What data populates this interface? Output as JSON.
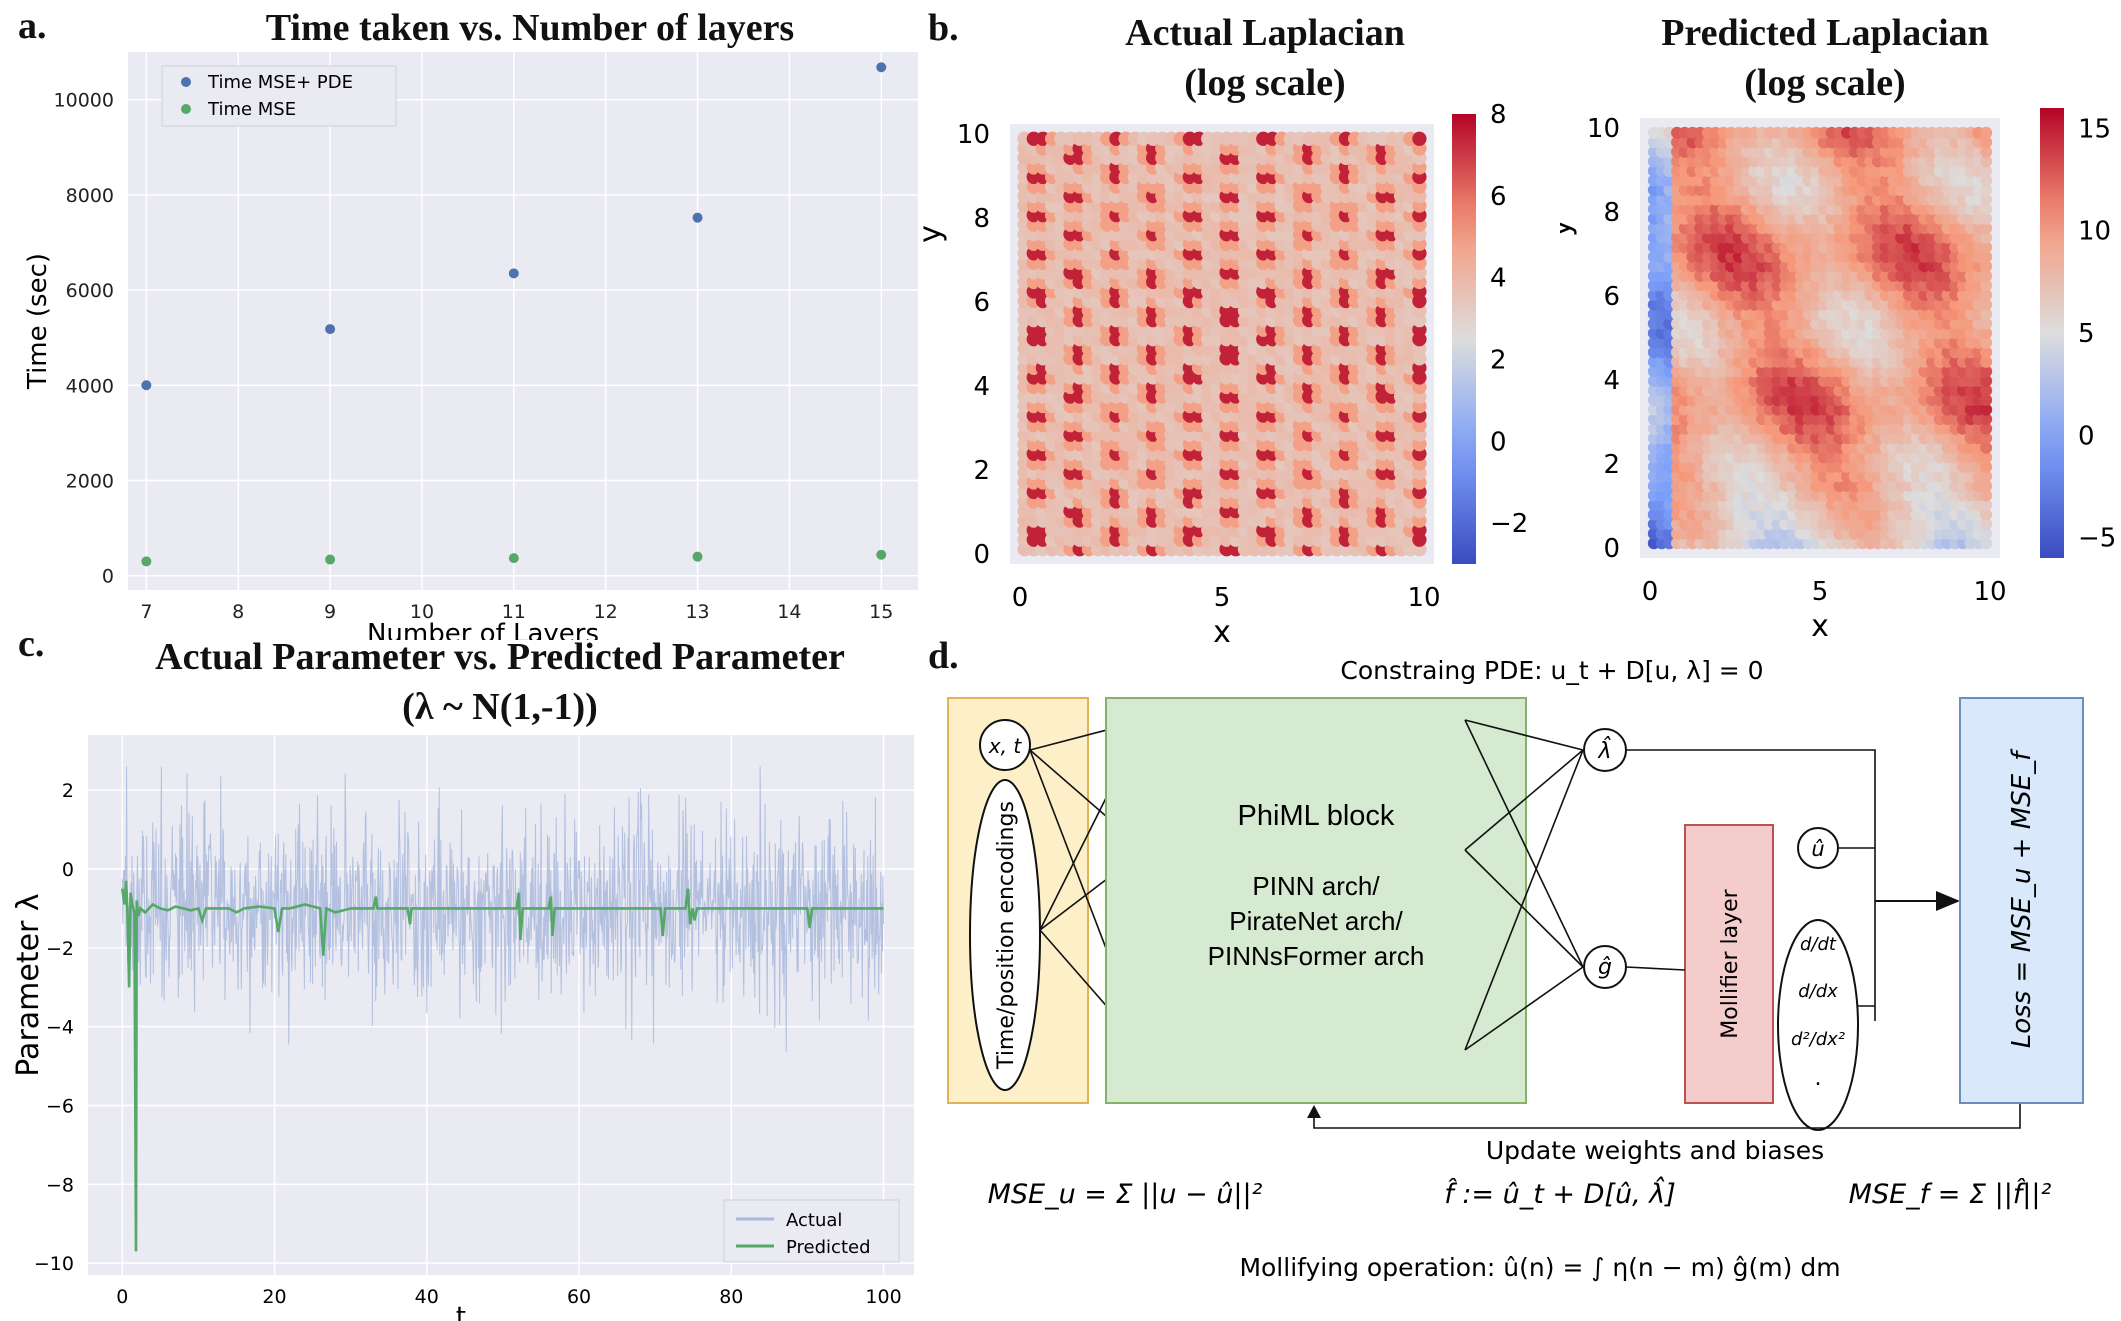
{
  "panel_labels": {
    "a": "a.",
    "b": "b.",
    "c": "c.",
    "d": "d."
  },
  "chart_data": [
    {
      "id": "a",
      "type": "scatter",
      "title": "Time taken vs. Number of layers",
      "xlabel": "Number of Layers",
      "ylabel": "Time (sec)",
      "xlim": [
        6.8,
        15.4
      ],
      "ylim": [
        -300,
        11000
      ],
      "xticks": [
        7,
        8,
        9,
        10,
        11,
        12,
        13,
        14,
        15
      ],
      "yticks": [
        0,
        2000,
        4000,
        6000,
        8000,
        10000
      ],
      "legend": "top-left",
      "series": [
        {
          "name": "Time MSE+ PDE",
          "color": "#4c72b0",
          "x": [
            7,
            9,
            11,
            13,
            15
          ],
          "y": [
            4000,
            5180,
            6350,
            7520,
            10680
          ]
        },
        {
          "name": "Time MSE",
          "color": "#55a868",
          "x": [
            7,
            9,
            11,
            13,
            15
          ],
          "y": [
            300,
            340,
            370,
            400,
            440
          ]
        }
      ]
    },
    {
      "id": "b1",
      "type": "heatmap",
      "title": "Actual Laplacian",
      "subtitle": "(log scale)",
      "xlabel": "x",
      "ylabel": "y",
      "xlim": [
        0,
        10
      ],
      "ylim": [
        0,
        10
      ],
      "xticks": [
        0,
        5,
        10
      ],
      "yticks": [
        0,
        2,
        4,
        6,
        8,
        10
      ],
      "colorbar_range": [
        -3,
        8
      ],
      "colorbar_ticks": [
        "8",
        "6",
        "4",
        "2",
        "0",
        "−2"
      ],
      "colormap": "coolwarm"
    },
    {
      "id": "b2",
      "type": "heatmap",
      "title": "Predicted Laplacian",
      "subtitle": "(log scale)",
      "xlabel": "x",
      "ylabel": "y",
      "xlim": [
        0,
        10
      ],
      "ylim": [
        0,
        10
      ],
      "xticks": [
        0,
        5,
        10
      ],
      "yticks": [
        0,
        2,
        4,
        6,
        8,
        10
      ],
      "colorbar_range": [
        -6,
        16
      ],
      "colorbar_ticks": [
        "15",
        "10",
        "5",
        "0",
        "−5"
      ],
      "colormap": "coolwarm"
    },
    {
      "id": "c",
      "type": "line",
      "title": "Actual Parameter vs. Predicted Parameter",
      "subtitle": "(λ ~ N(1,-1))",
      "xlabel": "t",
      "ylabel": "Parameter  λ",
      "xlim": [
        -4.5,
        104
      ],
      "ylim": [
        -10.3,
        3.4
      ],
      "xticks": [
        0,
        20,
        40,
        60,
        80,
        100
      ],
      "yticks": [
        2,
        0,
        -2,
        -4,
        -6,
        -8,
        -10
      ],
      "legend": "bottom-right",
      "series": [
        {
          "name": "Actual",
          "color": "#a9b8dc",
          "mean": -1,
          "std": 1
        },
        {
          "name": "Predicted",
          "color": "#55a868",
          "points": [
            [
              0,
              -0.5
            ],
            [
              0.3,
              -0.9
            ],
            [
              0.5,
              -0.3
            ],
            [
              0.7,
              -1.2
            ],
            [
              0.9,
              -3.0
            ],
            [
              1.1,
              -0.6
            ],
            [
              1.3,
              -0.9
            ],
            [
              1.6,
              -1.1
            ],
            [
              1.8,
              -9.7
            ],
            [
              1.9,
              -0.8
            ],
            [
              2.1,
              -1.2
            ],
            [
              2.4,
              -1.0
            ],
            [
              3,
              -1.1
            ],
            [
              4,
              -0.9
            ],
            [
              5,
              -1.0
            ],
            [
              6,
              -1.05
            ],
            [
              7,
              -0.95
            ],
            [
              8,
              -1.0
            ],
            [
              9,
              -1.05
            ],
            [
              10,
              -1.0
            ],
            [
              10.5,
              -1.3
            ],
            [
              11,
              -1.0
            ],
            [
              12,
              -1.0
            ],
            [
              14,
              -1.0
            ],
            [
              15,
              -1.1
            ],
            [
              16,
              -1.0
            ],
            [
              18,
              -0.95
            ],
            [
              20,
              -1.0
            ],
            [
              20.5,
              -1.6
            ],
            [
              21,
              -1.0
            ],
            [
              22,
              -1.0
            ],
            [
              24,
              -0.9
            ],
            [
              26,
              -1.0
            ],
            [
              26.4,
              -2.2
            ],
            [
              26.8,
              -1.0
            ],
            [
              28,
              -1.1
            ],
            [
              30,
              -1.0
            ],
            [
              32,
              -1.0
            ],
            [
              33,
              -1.0
            ],
            [
              33.3,
              -0.7
            ],
            [
              33.5,
              -1.0
            ],
            [
              36,
              -1.0
            ],
            [
              37.5,
              -1.0
            ],
            [
              37.8,
              -1.4
            ],
            [
              38,
              -1.0
            ],
            [
              40,
              -1.0
            ],
            [
              45,
              -1.0
            ],
            [
              50,
              -1.0
            ],
            [
              51.8,
              -1.0
            ],
            [
              52.1,
              -0.6
            ],
            [
              52.3,
              -1.8
            ],
            [
              52.6,
              -1.0
            ],
            [
              55,
              -1.0
            ],
            [
              56,
              -1.0
            ],
            [
              56.3,
              -0.7
            ],
            [
              56.5,
              -1.7
            ],
            [
              56.8,
              -1.0
            ],
            [
              60,
              -1.0
            ],
            [
              65,
              -1.0
            ],
            [
              70,
              -1.0
            ],
            [
              70.7,
              -1.0
            ],
            [
              71,
              -1.7
            ],
            [
              71.3,
              -1.0
            ],
            [
              74,
              -1.0
            ],
            [
              74.3,
              -0.5
            ],
            [
              74.6,
              -1.4
            ],
            [
              74.9,
              -1.0
            ],
            [
              75.2,
              -1.3
            ],
            [
              75.5,
              -1.0
            ],
            [
              80,
              -1.0
            ],
            [
              86,
              -1.0
            ],
            [
              90,
              -1.0
            ],
            [
              90.3,
              -1.5
            ],
            [
              90.6,
              -1.0
            ],
            [
              95,
              -1.0
            ],
            [
              100,
              -1.0
            ]
          ]
        }
      ]
    }
  ],
  "diagram": {
    "header": "Constraing PDE: u_t + D[u, λ] = 0",
    "input_node": "x, t",
    "encodings": "Time/position encodings",
    "block_title": "PhiML block",
    "block_lines": [
      "PINN arch/",
      "PirateNet arch/",
      "PINNsFormer arch"
    ],
    "lambda_hat": "λ̂",
    "g_hat": "ĝ",
    "u_hat": "û",
    "mollifier": "Mollifier layer",
    "derivs": [
      "d/dt",
      "d/dx",
      "d²/dx²",
      "."
    ],
    "loss": "Loss = MSE_u + MSE_f",
    "update": "Update weights and biases",
    "eq_mse_u": "MSE_u = Σ ||u − û||²",
    "eq_f": "f̂ := û_t + D[û, λ̂]",
    "eq_mse_f": "MSE_f = Σ ||f̂||²",
    "eq_mollify": "Mollifying operation: û(n) = ∫ η(n − m) ĝ(m) dm"
  }
}
